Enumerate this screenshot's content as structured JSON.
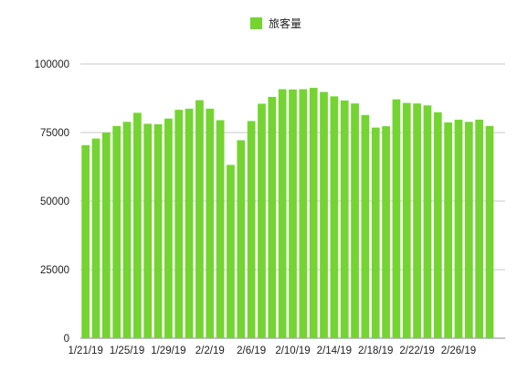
{
  "chart_data": {
    "type": "bar",
    "title": "",
    "xlabel": "",
    "ylabel": "",
    "legend_position": "top-center",
    "grid": true,
    "ylim": [
      0,
      100000
    ],
    "y_ticks": [
      "0",
      "25000",
      "50000",
      "75000",
      "100000"
    ],
    "x_tick_labels": [
      "1/21/19",
      "1/25/19",
      "1/29/19",
      "2/2/19",
      "2/6/19",
      "2/10/19",
      "2/14/19",
      "2/18/19",
      "2/22/19",
      "2/26/19"
    ],
    "categories": [
      "1/21/19",
      "1/22/19",
      "1/23/19",
      "1/24/19",
      "1/25/19",
      "1/26/19",
      "1/27/19",
      "1/28/19",
      "1/29/19",
      "1/30/19",
      "1/31/19",
      "2/1/19",
      "2/2/19",
      "2/3/19",
      "2/4/19",
      "2/5/19",
      "2/6/19",
      "2/7/19",
      "2/8/19",
      "2/9/19",
      "2/10/19",
      "2/11/19",
      "2/12/19",
      "2/13/19",
      "2/14/19",
      "2/15/19",
      "2/16/19",
      "2/17/19",
      "2/18/19",
      "2/19/19",
      "2/20/19",
      "2/21/19",
      "2/22/19",
      "2/23/19",
      "2/24/19",
      "2/25/19",
      "2/26/19",
      "2/27/19",
      "2/28/19",
      "3/1/19",
      "3/2/19"
    ],
    "series": [
      {
        "name": "旅客量",
        "color": "#74d432",
        "values": [
          70400,
          72800,
          75000,
          77400,
          78900,
          82200,
          78200,
          78000,
          80100,
          83300,
          83700,
          86800,
          83700,
          79500,
          63200,
          72200,
          79200,
          85500,
          88000,
          90800,
          90700,
          90800,
          91300,
          89800,
          88200,
          86700,
          85600,
          81400,
          76800,
          77300,
          87100,
          85800,
          85600,
          84900,
          82400,
          78700,
          79700,
          78900,
          79700,
          77400,
          0
        ]
      }
    ]
  }
}
